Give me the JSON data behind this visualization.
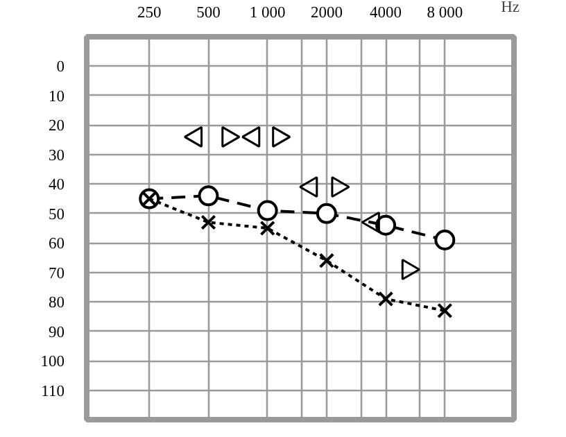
{
  "chart_data": {
    "type": "line",
    "xlabel": "Hz",
    "log": "x",
    "xlim": [
      120,
      18000
    ],
    "xticks": [
      250,
      500,
      {
        "value": 1000,
        "label": "1 000"
      },
      {
        "value": 1500,
        "label": null
      },
      2000,
      {
        "value": 3000,
        "label": null
      },
      4000,
      {
        "value": 6000,
        "label": null
      },
      {
        "value": 8000,
        "label": "8 000"
      }
    ],
    "ylim": [
      120,
      -10
    ],
    "yticks": [
      0,
      10,
      20,
      30,
      40,
      50,
      60,
      70,
      80,
      90,
      100,
      110
    ],
    "grid": true,
    "series": [
      {
        "x": [
          250,
          500,
          1000,
          2000,
          4000,
          8000
        ],
        "values": [
          45,
          44,
          49,
          50,
          54,
          59
        ],
        "color": "#000000",
        "marker": "circle",
        "line_style": "dashed"
      },
      {
        "x": [
          250,
          500,
          1000,
          2000,
          4000,
          8000
        ],
        "values": [
          45,
          53,
          55,
          66,
          79,
          83
        ],
        "color": "#000000",
        "marker": "cross",
        "line_style": "dotted"
      },
      {
        "type": "scatter",
        "x": [
          432,
          850,
          1670,
          3460
        ],
        "values": [
          24,
          24,
          41,
          53
        ],
        "color": "#000000",
        "marker": "triangle"
      },
      {
        "type": "scatter",
        "x": [
          630,
          1140,
          2280,
          5200
        ],
        "values": [
          24,
          24,
          41,
          69
        ],
        "color": "#000000",
        "marker": "triangle"
      }
    ]
  }
}
